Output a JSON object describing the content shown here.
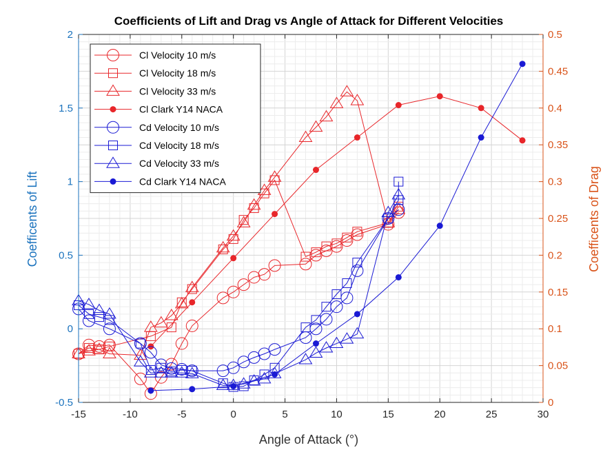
{
  "chart_data": {
    "type": "line",
    "title": "Coefficients of Lift and Drag vs Angle of Attack for Different Velocities",
    "xlabel": "Angle of Attack (°)",
    "ylabel_left": "Coefficents of Lift",
    "ylabel_right": "Coefficents of Drag",
    "xlim": [
      -15,
      30
    ],
    "ylim_left": [
      -0.5,
      2
    ],
    "ylim_right": [
      0,
      0.5
    ],
    "xticks": [
      "-15",
      "-10",
      "-5",
      "0",
      "5",
      "10",
      "15",
      "20",
      "25",
      "30"
    ],
    "yticks_left": [
      "-0.5",
      "0",
      "0.5",
      "1",
      "1.5",
      "2"
    ],
    "yticks_right": [
      "0",
      "0.05",
      "0.1",
      "0.15",
      "0.2",
      "0.25",
      "0.3",
      "0.35",
      "0.4",
      "0.45",
      "0.5"
    ],
    "grid": true,
    "legend_position": "top-left",
    "colors": {
      "lift": "#e8262a",
      "drag": "#1a1ad4",
      "left_axis": "#1a72bd",
      "right_axis": "#d95319"
    },
    "series": [
      {
        "name": "Cl Velocity 10 m/s",
        "axis": "left",
        "marker": "circle",
        "x": [
          -15,
          -14,
          -13,
          -12,
          -9,
          -8,
          -7,
          -6,
          -5,
          -4,
          -1,
          0,
          1,
          2,
          3,
          4,
          7,
          8,
          9,
          10,
          11,
          12,
          15,
          16
        ],
        "y": [
          -0.17,
          -0.11,
          -0.12,
          -0.11,
          -0.34,
          -0.44,
          -0.33,
          -0.24,
          -0.1,
          0.02,
          0.21,
          0.25,
          0.3,
          0.35,
          0.37,
          0.43,
          0.44,
          0.5,
          0.53,
          0.56,
          0.6,
          0.64,
          0.71,
          0.79
        ]
      },
      {
        "name": "Cl Velocity 18 m/s",
        "axis": "left",
        "marker": "square",
        "x": [
          -15,
          -14,
          -13,
          -12,
          -8,
          -6,
          -5,
          -4,
          -1,
          0,
          1,
          2,
          3,
          4,
          7,
          8,
          9,
          10,
          11,
          12,
          15,
          16
        ],
        "y": [
          -0.17,
          -0.13,
          -0.14,
          -0.12,
          -0.05,
          0.01,
          0.18,
          0.27,
          0.54,
          0.61,
          0.74,
          0.82,
          0.92,
          1.01,
          0.49,
          0.52,
          0.56,
          0.58,
          0.62,
          0.66,
          0.72,
          0.83
        ]
      },
      {
        "name": "Cl Velocity 33 m/s",
        "axis": "left",
        "marker": "triangle",
        "x": [
          -15,
          -14,
          -13,
          -12,
          -9,
          -8,
          -7,
          -6,
          -5,
          -4,
          -1,
          0,
          1,
          2,
          3,
          4,
          7,
          8,
          9,
          10,
          11,
          12,
          15,
          16
        ],
        "y": [
          -0.17,
          -0.15,
          -0.14,
          -0.17,
          -0.18,
          0.01,
          0.04,
          0.09,
          0.17,
          0.28,
          0.55,
          0.63,
          0.72,
          0.84,
          0.94,
          1.03,
          1.3,
          1.37,
          1.44,
          1.53,
          1.61,
          1.55,
          0.72,
          0.81
        ]
      },
      {
        "name": "Cl Clark Y14 NACA",
        "axis": "left",
        "marker": "dot",
        "x": [
          -8,
          -4,
          0,
          4,
          8,
          12,
          16,
          20,
          24,
          28
        ],
        "y": [
          -0.12,
          0.18,
          0.48,
          0.78,
          1.08,
          1.3,
          1.52,
          1.58,
          1.5,
          1.28
        ]
      },
      {
        "name": "Cd Velocity 10 m/s",
        "axis": "right",
        "marker": "circle",
        "x": [
          -15,
          -14,
          -12,
          -9,
          -8,
          -7,
          -6,
          -5,
          -4,
          -1,
          0,
          1,
          2,
          3,
          4,
          7,
          8,
          9,
          10,
          11,
          12,
          15,
          16
        ],
        "y": [
          0.127,
          0.111,
          0.1,
          0.08,
          0.068,
          0.051,
          0.046,
          0.045,
          0.043,
          0.043,
          0.047,
          0.055,
          0.061,
          0.066,
          0.072,
          0.088,
          0.1,
          0.113,
          0.13,
          0.142,
          0.179,
          0.25,
          0.262
        ]
      },
      {
        "name": "Cd Velocity 18 m/s",
        "axis": "right",
        "marker": "square",
        "x": [
          -15,
          -14,
          -13,
          -12,
          -9,
          -8,
          -7,
          -6,
          -5,
          -4,
          -1,
          0,
          1,
          2,
          3,
          4,
          7,
          8,
          9,
          10,
          11,
          12,
          15,
          16,
          16
        ],
        "y": [
          0.132,
          0.12,
          0.116,
          0.112,
          0.08,
          0.044,
          0.047,
          0.042,
          0.044,
          0.043,
          0.026,
          0.021,
          0.022,
          0.03,
          0.038,
          0.047,
          0.102,
          0.112,
          0.13,
          0.147,
          0.162,
          0.19,
          0.25,
          0.275,
          0.3
        ]
      },
      {
        "name": "Cd Velocity 33 m/s",
        "axis": "right",
        "marker": "triangle",
        "x": [
          -15,
          -14,
          -13,
          -12,
          -9,
          -8,
          -7,
          -6,
          -5,
          -4,
          -1,
          0,
          1,
          2,
          3,
          4,
          7,
          8,
          9,
          10,
          11,
          12,
          15,
          16
        ],
        "y": [
          0.138,
          0.133,
          0.125,
          0.12,
          0.055,
          0.04,
          0.04,
          0.04,
          0.04,
          0.039,
          0.023,
          0.023,
          0.025,
          0.029,
          0.032,
          0.039,
          0.058,
          0.067,
          0.074,
          0.08,
          0.086,
          0.093,
          0.258,
          0.282
        ]
      },
      {
        "name": "Cd Clark Y14 NACA",
        "axis": "right",
        "marker": "dot",
        "x": [
          -8,
          -4,
          0,
          4,
          8,
          12,
          16,
          20,
          24,
          28
        ],
        "y": [
          0.016,
          0.018,
          0.022,
          0.038,
          0.08,
          0.12,
          0.17,
          0.24,
          0.36,
          0.46
        ]
      }
    ]
  }
}
